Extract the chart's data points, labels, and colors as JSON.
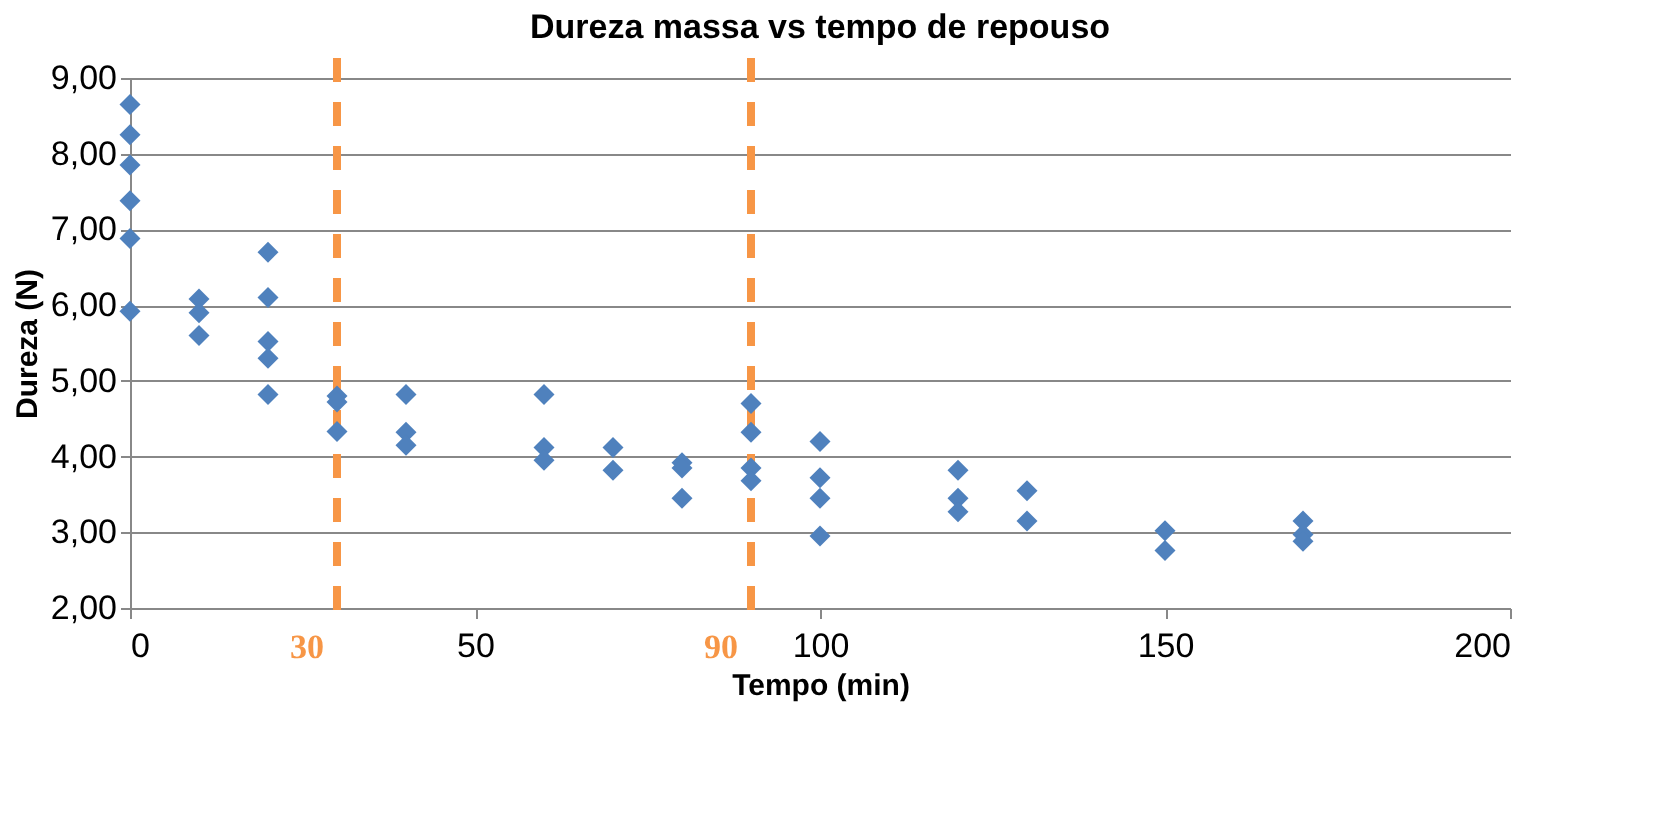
{
  "chart_data": {
    "type": "scatter",
    "title": "Dureza massa vs tempo de repouso",
    "xlabel": "Tempo (min)",
    "ylabel": "Dureza (N)",
    "x": [
      0,
      0,
      0,
      0,
      0,
      0,
      10,
      10,
      10,
      20,
      20,
      20,
      20,
      20,
      30,
      30,
      30,
      40,
      40,
      40,
      60,
      60,
      60,
      70,
      70,
      80,
      80,
      80,
      90,
      90,
      90,
      90,
      100,
      100,
      100,
      100,
      120,
      120,
      120,
      130,
      130,
      150,
      150,
      170,
      170,
      170
    ],
    "series": [
      {
        "color": "#4f81bd",
        "values": [
          8.65,
          8.25,
          7.85,
          7.38,
          6.88,
          5.92,
          6.08,
          5.9,
          5.6,
          6.7,
          6.1,
          5.52,
          5.3,
          4.82,
          4.8,
          4.72,
          4.33,
          4.82,
          4.32,
          4.15,
          4.82,
          4.12,
          3.95,
          4.12,
          3.82,
          3.92,
          3.85,
          3.45,
          4.7,
          4.32,
          3.85,
          3.68,
          4.2,
          3.72,
          3.45,
          2.95,
          3.82,
          3.45,
          3.27,
          3.55,
          3.15,
          3.02,
          2.76,
          3.15,
          2.97,
          2.88
        ]
      }
    ],
    "xlim": [
      0,
      200
    ],
    "xticks": [
      0,
      50,
      100,
      150,
      200
    ],
    "ylim": [
      2,
      9
    ],
    "yticks": [
      {
        "value": 2,
        "label": "2,00"
      },
      {
        "value": 3,
        "label": "3,00"
      },
      {
        "value": 4,
        "label": "4,00"
      },
      {
        "value": 5,
        "label": "5,00"
      },
      {
        "value": 6,
        "label": "6,00"
      },
      {
        "value": 7,
        "label": "7,00"
      },
      {
        "value": 8,
        "label": "8,00"
      },
      {
        "value": 9,
        "label": "9,00"
      }
    ],
    "ref_lines": [
      {
        "axis": "x",
        "value": 30,
        "label": "30",
        "color": "#f79646",
        "line_style": "dashed"
      },
      {
        "axis": "x",
        "value": 90,
        "label": "90",
        "color": "#f79646",
        "line_style": "dashed"
      }
    ],
    "grid": "y",
    "marker": "diamond",
    "legend": false
  }
}
